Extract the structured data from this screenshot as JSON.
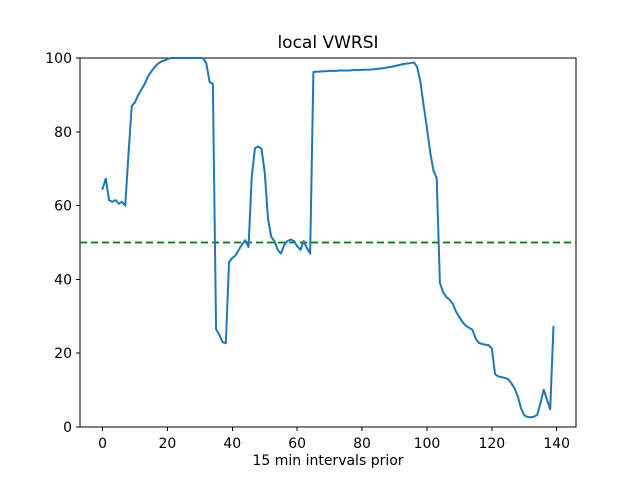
{
  "figure": {
    "background": "#ffffff",
    "spine_color": "#000000",
    "text_color": "#000000"
  },
  "chart_data": {
    "type": "line",
    "title": "local VWRSI",
    "xlabel": "15 min intervals prior",
    "ylabel": "",
    "xlim": [
      -6.95,
      145.95
    ],
    "ylim": [
      0,
      100
    ],
    "xticks": [
      0,
      20,
      40,
      60,
      80,
      100,
      120,
      140
    ],
    "yticks": [
      0,
      20,
      40,
      60,
      80,
      100
    ],
    "grid": false,
    "legend": false,
    "x_start": 0,
    "x_step": 1,
    "series": [
      {
        "name": "local VWRSI",
        "color": "#1f77b4",
        "y": [
          64.5,
          67.3,
          61.5,
          61,
          61.5,
          60.5,
          61,
          60,
          74,
          87,
          88,
          90,
          91.5,
          93,
          95,
          96.3,
          97.5,
          98.4,
          99,
          99.3,
          99.7,
          100,
          100,
          100,
          100,
          100,
          100,
          100,
          100,
          100,
          100,
          100,
          98.5,
          93.5,
          93,
          26.5,
          25,
          23,
          22.7,
          44.7,
          45.8,
          46.5,
          48,
          49.5,
          50.6,
          48.8,
          68,
          75.6,
          76,
          75.4,
          69,
          56.5,
          51.5,
          50.4,
          48,
          47,
          49.3,
          50.4,
          50.8,
          50.4,
          49,
          48,
          50.4,
          48.5,
          47,
          96.2,
          96.3,
          96.3,
          96.4,
          96.4,
          96.5,
          96.5,
          96.5,
          96.6,
          96.6,
          96.6,
          96.6,
          96.7,
          96.7,
          96.7,
          96.8,
          96.8,
          96.8,
          96.9,
          97,
          97.1,
          97.2,
          97.3,
          97.5,
          97.6,
          97.8,
          98,
          98.2,
          98.4,
          98.5,
          98.6,
          98.8,
          97.5,
          93.5,
          87,
          81,
          74.5,
          69.5,
          67.5,
          39,
          36.5,
          35.2,
          34.5,
          33.3,
          31.2,
          29.8,
          28.4,
          27.4,
          26.9,
          26.4,
          24,
          22.8,
          22.5,
          22.3,
          22.2,
          21.3,
          14.3,
          13.7,
          13.5,
          13.3,
          13,
          11.9,
          10.5,
          8.3,
          5.1,
          3.2,
          2.7,
          2.6,
          2.8,
          3.3,
          6.5,
          10.1,
          7.4,
          4.8,
          27.2
        ]
      }
    ],
    "reference_line": {
      "y": 50,
      "color": "#008000",
      "style": "dashed"
    }
  }
}
